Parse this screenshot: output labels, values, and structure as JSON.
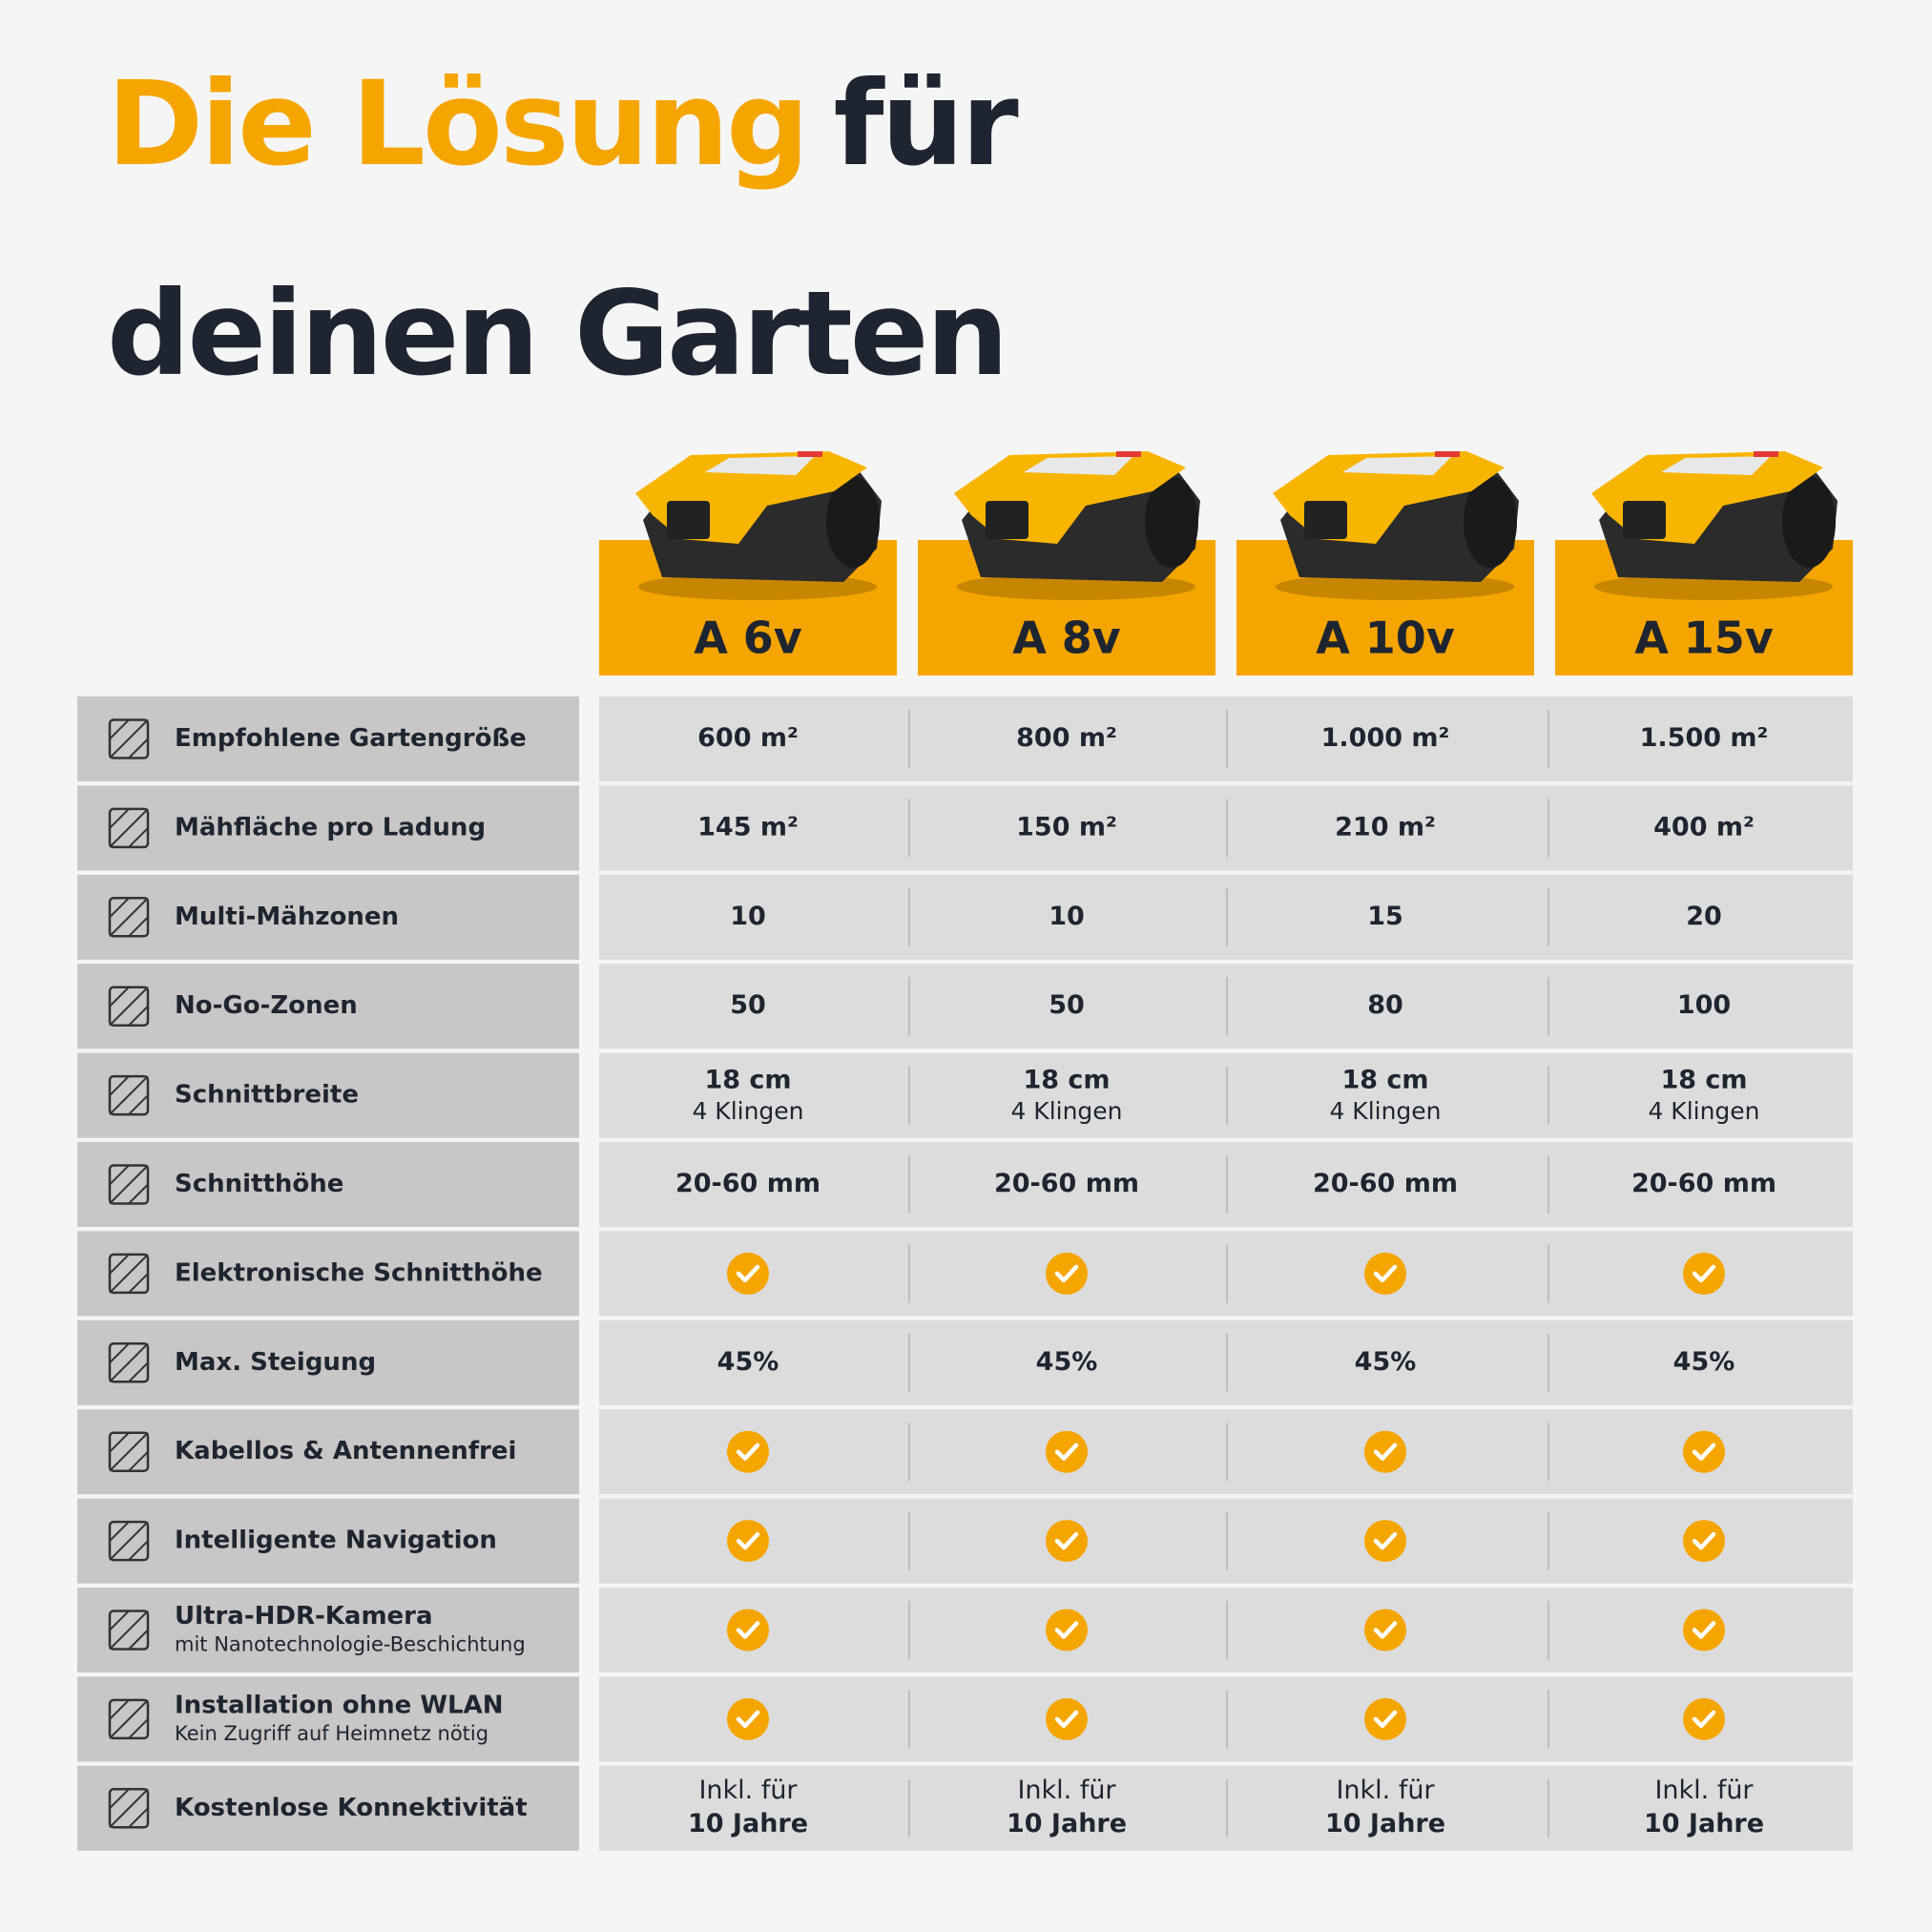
{
  "title": {
    "highlight": "Die Lösung",
    "line1_rest": "für",
    "line2": "deinen Garten"
  },
  "products": [
    "A 6v",
    "A 8v",
    "A 10v",
    "A 15v"
  ],
  "rows": [
    {
      "label": "Empfohlene Gartengröße",
      "cells": [
        "600 m²",
        "800 m²",
        "1.000 m²",
        "1.500 m²"
      ]
    },
    {
      "label": "Mähfläche pro Ladung",
      "cells": [
        "145 m²",
        "150 m²",
        "210 m²",
        "400 m²"
      ]
    },
    {
      "label": "Multi-Mähzonen",
      "cells": [
        "10",
        "10",
        "15",
        "20"
      ]
    },
    {
      "label": "No-Go-Zonen",
      "cells": [
        "50",
        "50",
        "80",
        "100"
      ]
    },
    {
      "label": "Schnittbreite",
      "cells": [
        {
          "main": "18 cm",
          "sub": "4 Klingen"
        },
        {
          "main": "18 cm",
          "sub": "4 Klingen"
        },
        {
          "main": "18 cm",
          "sub": "4 Klingen"
        },
        {
          "main": "18 cm",
          "sub": "4 Klingen"
        }
      ]
    },
    {
      "label": "Schnitthöhe",
      "cells": [
        "20-60 mm",
        "20-60 mm",
        "20-60 mm",
        "20-60 mm"
      ]
    },
    {
      "label": "Elektronische Schnitthöhe",
      "cells": [
        true,
        true,
        true,
        true
      ]
    },
    {
      "label": "Max. Steigung",
      "cells": [
        "45%",
        "45%",
        "45%",
        "45%"
      ]
    },
    {
      "label": "Kabellos & Antennenfrei",
      "cells": [
        true,
        true,
        true,
        true
      ]
    },
    {
      "label": "Intelligente Navigation",
      "cells": [
        true,
        true,
        true,
        true
      ]
    },
    {
      "label": "Ultra-HDR-Kamera",
      "sublabel": "mit Nanotechnologie-Beschichtung",
      "cells": [
        true,
        true,
        true,
        true
      ]
    },
    {
      "label": "Installation ohne WLAN",
      "sublabel": "Kein Zugriff auf Heimnetz nötig",
      "cells": [
        true,
        true,
        true,
        true
      ]
    },
    {
      "label": "Kostenlose Konnektivität",
      "cells": [
        {
          "top": "Inkl. für",
          "main": "10 Jahre"
        },
        {
          "top": "Inkl. für",
          "main": "10 Jahre"
        },
        {
          "top": "Inkl. für",
          "main": "10 Jahre"
        },
        {
          "top": "Inkl. für",
          "main": "10 Jahre"
        }
      ]
    }
  ]
}
